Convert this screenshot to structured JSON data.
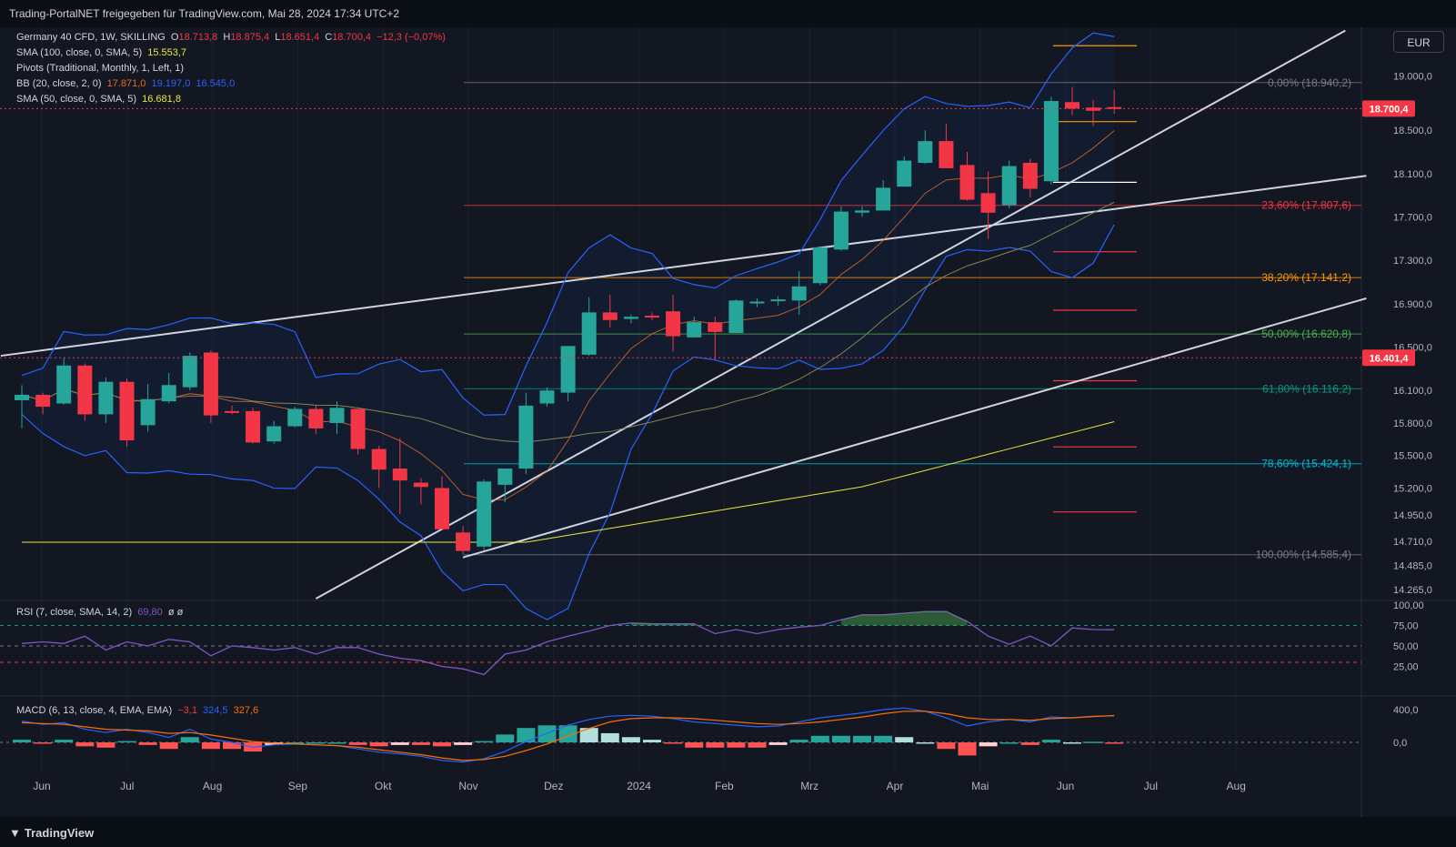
{
  "header": {
    "title": "Trading-PortalNET freigegeben für TradingView.com, Mai 28, 2024 17:34 UTC+2"
  },
  "currency": "EUR",
  "footer": {
    "brand": "TradingView"
  },
  "legend": {
    "main": {
      "name": "Germany 40 CFD, 1W, SKILLING",
      "o_label": "O",
      "o": "18.713,8",
      "h_label": "H",
      "h": "18.875,4",
      "l_label": "L",
      "l": "18.651,4",
      "c_label": "C",
      "c": "18.700,4",
      "change": "−12,3 (−0,07%)"
    },
    "sma100": {
      "label": "SMA (100, close, 0, SMA, 5)",
      "value": "15.553,7"
    },
    "pivots": {
      "label": "Pivots (Traditional, Monthly, 1, Left, 1)"
    },
    "bb": {
      "label": "BB (20, close, 2, 0)",
      "v1": "17.871,0",
      "v2": "19.197,0",
      "v3": "16.545,0"
    },
    "sma50": {
      "label": "SMA (50, close, 0, SMA, 5)",
      "value": "16.681,8"
    },
    "rsi": {
      "label": "RSI (7, close, SMA, 14, 2)",
      "value": "69,80",
      "extra": "ø  ø"
    },
    "macd": {
      "label": "MACD (6, 13, close, 4, EMA, EMA)",
      "v1": "−3,1",
      "v2": "324,5",
      "v3": "327,6"
    }
  },
  "colors": {
    "bull": "#26a69a",
    "bear": "#f23645",
    "bb": "#2962ff",
    "sma100": "#e8e83a",
    "sma50": "#8a8450",
    "bbmid": "#e06c28",
    "rsi": "#7e57c2",
    "macd": "#2962ff",
    "signal": "#ff6d00"
  },
  "chart_data": {
    "type": "candlestick",
    "x_labels": [
      "Jun",
      "Jul",
      "Aug",
      "Sep",
      "Okt",
      "Nov",
      "Dez",
      "2024",
      "Feb",
      "Mrz",
      "Apr",
      "Mai",
      "Jun",
      "Jul",
      "Aug"
    ],
    "price_ticks": [
      "19.000,0",
      "18.500,0",
      "18.100,0",
      "17.700,0",
      "17.300,0",
      "16.900,0",
      "16.500,0",
      "16.100,0",
      "15.800,0",
      "15.500,0",
      "15.200,0",
      "14.950,0",
      "14.710,0",
      "14.485,0",
      "14.265,0"
    ],
    "ylim": [
      14180,
      19450
    ],
    "last_price": "18.700,4",
    "marker_price": "16.401,4",
    "candles": [
      {
        "o": 16010,
        "h": 16150,
        "l": 15750,
        "c": 16060
      },
      {
        "o": 16060,
        "h": 16080,
        "l": 15880,
        "c": 15950
      },
      {
        "o": 15980,
        "h": 16400,
        "l": 15970,
        "c": 16330
      },
      {
        "o": 16330,
        "h": 16350,
        "l": 15820,
        "c": 15880
      },
      {
        "o": 15880,
        "h": 16220,
        "l": 15800,
        "c": 16180
      },
      {
        "o": 16180,
        "h": 16210,
        "l": 15580,
        "c": 15640
      },
      {
        "o": 15780,
        "h": 16160,
        "l": 15720,
        "c": 16020
      },
      {
        "o": 16000,
        "h": 16260,
        "l": 15980,
        "c": 16150
      },
      {
        "o": 16130,
        "h": 16450,
        "l": 16100,
        "c": 16420
      },
      {
        "o": 16450,
        "h": 16470,
        "l": 15800,
        "c": 15870
      },
      {
        "o": 15910,
        "h": 15960,
        "l": 15880,
        "c": 15900
      },
      {
        "o": 15910,
        "h": 15940,
        "l": 15610,
        "c": 15620
      },
      {
        "o": 15630,
        "h": 15820,
        "l": 15610,
        "c": 15770
      },
      {
        "o": 15770,
        "h": 15950,
        "l": 15760,
        "c": 15930
      },
      {
        "o": 15930,
        "h": 15970,
        "l": 15700,
        "c": 15750
      },
      {
        "o": 15800,
        "h": 16000,
        "l": 15700,
        "c": 15940
      },
      {
        "o": 15930,
        "h": 15930,
        "l": 15510,
        "c": 15560
      },
      {
        "o": 15560,
        "h": 15590,
        "l": 15200,
        "c": 15370
      },
      {
        "o": 15380,
        "h": 15660,
        "l": 14960,
        "c": 15270
      },
      {
        "o": 15250,
        "h": 15290,
        "l": 15050,
        "c": 15210
      },
      {
        "o": 15200,
        "h": 15310,
        "l": 14820,
        "c": 14820
      },
      {
        "o": 14790,
        "h": 14850,
        "l": 14585,
        "c": 14620
      },
      {
        "o": 14660,
        "h": 15280,
        "l": 14630,
        "c": 15260
      },
      {
        "o": 15230,
        "h": 15350,
        "l": 15070,
        "c": 15380
      },
      {
        "o": 15380,
        "h": 16080,
        "l": 15330,
        "c": 15960
      },
      {
        "o": 15980,
        "h": 16130,
        "l": 15950,
        "c": 16100
      },
      {
        "o": 16080,
        "h": 16500,
        "l": 16000,
        "c": 16510
      },
      {
        "o": 16430,
        "h": 16960,
        "l": 16420,
        "c": 16820
      },
      {
        "o": 16820,
        "h": 16980,
        "l": 16680,
        "c": 16750
      },
      {
        "o": 16760,
        "h": 16800,
        "l": 16720,
        "c": 16780
      },
      {
        "o": 16790,
        "h": 16820,
        "l": 16750,
        "c": 16780
      },
      {
        "o": 16830,
        "h": 16980,
        "l": 16460,
        "c": 16600
      },
      {
        "o": 16590,
        "h": 16780,
        "l": 16590,
        "c": 16730
      },
      {
        "o": 16730,
        "h": 16780,
        "l": 16380,
        "c": 16640
      },
      {
        "o": 16630,
        "h": 16940,
        "l": 16630,
        "c": 16930
      },
      {
        "o": 16910,
        "h": 16950,
        "l": 16870,
        "c": 16920
      },
      {
        "o": 16930,
        "h": 16970,
        "l": 16880,
        "c": 16940
      },
      {
        "o": 16930,
        "h": 17200,
        "l": 16800,
        "c": 17060
      },
      {
        "o": 17090,
        "h": 17430,
        "l": 17070,
        "c": 17420
      },
      {
        "o": 17400,
        "h": 17800,
        "l": 17390,
        "c": 17750
      },
      {
        "o": 17740,
        "h": 17800,
        "l": 17700,
        "c": 17760
      },
      {
        "o": 17760,
        "h": 18040,
        "l": 17760,
        "c": 17970
      },
      {
        "o": 17980,
        "h": 18260,
        "l": 17980,
        "c": 18220
      },
      {
        "o": 18200,
        "h": 18500,
        "l": 18190,
        "c": 18400
      },
      {
        "o": 18400,
        "h": 18560,
        "l": 18180,
        "c": 18150
      },
      {
        "o": 18180,
        "h": 18300,
        "l": 17850,
        "c": 17860
      },
      {
        "o": 17920,
        "h": 18120,
        "l": 17500,
        "c": 17740
      },
      {
        "o": 17810,
        "h": 18220,
        "l": 17780,
        "c": 18170
      },
      {
        "o": 18200,
        "h": 18240,
        "l": 17880,
        "c": 17960
      },
      {
        "o": 18030,
        "h": 18810,
        "l": 18000,
        "c": 18770
      },
      {
        "o": 18760,
        "h": 18900,
        "l": 18640,
        "c": 18700
      },
      {
        "o": 18710,
        "h": 18780,
        "l": 18540,
        "c": 18680
      },
      {
        "o": 18713.8,
        "h": 18875.4,
        "l": 18651.4,
        "c": 18700.4
      }
    ],
    "fibonacci": [
      {
        "label": "0,00% (18.940,2)",
        "price": 18940.2,
        "color": "#787b86"
      },
      {
        "label": "23,60% (17.807,6)",
        "price": 17807.6,
        "color": "#f23645"
      },
      {
        "label": "38,20% (17.141,2)",
        "price": 17141.2,
        "color": "#ff9800"
      },
      {
        "label": "50,00% (16.620,8)",
        "price": 16620.8,
        "color": "#4caf50"
      },
      {
        "label": "61,80% (16.116,2)",
        "price": 16116.2,
        "color": "#089981"
      },
      {
        "label": "78,60% (15.424,1)",
        "price": 15424.1,
        "color": "#00bcd4"
      },
      {
        "label": "100,00% (14.585,4)",
        "price": 14585.4,
        "color": "#787b86"
      }
    ],
    "pivot_levels": [
      {
        "price": 19280,
        "color": "#ff9800"
      },
      {
        "price": 18580,
        "color": "#ff9800"
      },
      {
        "price": 18020,
        "color": "#ffffff"
      },
      {
        "price": 17380,
        "color": "#f23645"
      },
      {
        "price": 16840,
        "color": "#f23645"
      },
      {
        "price": 16190,
        "color": "#f23645"
      },
      {
        "price": 15580,
        "color": "#f23645"
      },
      {
        "price": 14980,
        "color": "#f23645"
      }
    ],
    "rsi": {
      "ticks": [
        "100,00",
        "75,00",
        "50,00",
        "25,00"
      ],
      "values": [
        53,
        55,
        53,
        62,
        45,
        55,
        50,
        58,
        55,
        38,
        50,
        48,
        45,
        48,
        40,
        48,
        48,
        40,
        35,
        32,
        25,
        22,
        15,
        40,
        45,
        55,
        62,
        68,
        75,
        78,
        77,
        77,
        77,
        65,
        70,
        65,
        70,
        73,
        75,
        82,
        88,
        88,
        90,
        92,
        92,
        80,
        62,
        52,
        62,
        50,
        72,
        70,
        69.8
      ]
    },
    "macd": {
      "ticks": [
        "400,0",
        "0,0"
      ],
      "macd": [
        260,
        220,
        240,
        160,
        120,
        160,
        120,
        60,
        160,
        40,
        0,
        -60,
        -30,
        -20,
        -30,
        -40,
        -80,
        -120,
        -140,
        -170,
        -220,
        -240,
        -200,
        -110,
        10,
        110,
        210,
        280,
        320,
        330,
        320,
        290,
        250,
        230,
        210,
        190,
        200,
        250,
        300,
        330,
        360,
        400,
        420,
        380,
        300,
        200,
        250,
        280,
        250,
        310,
        300,
        320,
        324.5
      ],
      "signal": [
        240,
        230,
        220,
        190,
        160,
        150,
        140,
        110,
        120,
        90,
        50,
        10,
        -10,
        -20,
        -30,
        -40,
        -60,
        -90,
        -120,
        -150,
        -190,
        -220,
        -210,
        -170,
        -100,
        -20,
        80,
        170,
        250,
        290,
        300,
        300,
        290,
        270,
        250,
        230,
        220,
        230,
        250,
        280,
        310,
        350,
        380,
        380,
        350,
        300,
        280,
        280,
        270,
        290,
        300,
        315,
        327.6
      ]
    }
  }
}
